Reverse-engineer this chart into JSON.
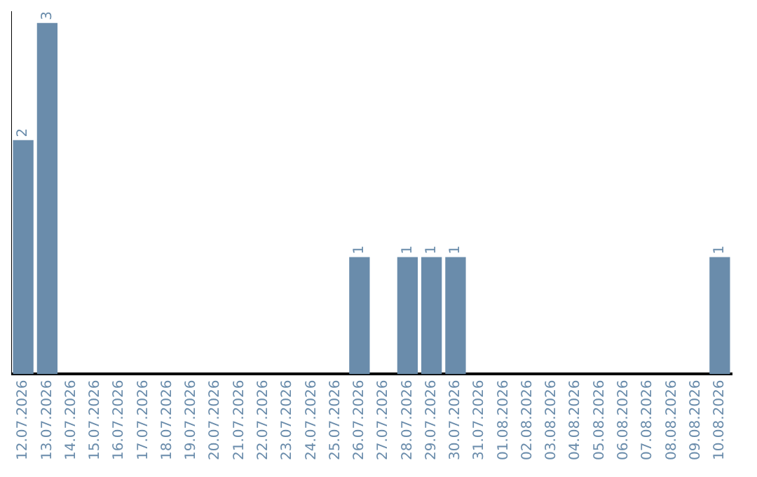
{
  "chart_data": {
    "type": "bar",
    "categories": [
      "12.07.2026",
      "13.07.2026",
      "14.07.2026",
      "15.07.2026",
      "16.07.2026",
      "17.07.2026",
      "18.07.2026",
      "19.07.2026",
      "20.07.2026",
      "21.07.2026",
      "22.07.2026",
      "23.07.2026",
      "24.07.2026",
      "25.07.2026",
      "26.07.2026",
      "27.07.2026",
      "28.07.2026",
      "29.07.2026",
      "30.07.2026",
      "31.07.2026",
      "01.08.2026",
      "02.08.2026",
      "03.08.2026",
      "04.08.2026",
      "05.08.2026",
      "06.08.2026",
      "07.08.2026",
      "08.08.2026",
      "09.08.2026",
      "10.08.2026"
    ],
    "values": [
      2,
      3,
      0,
      0,
      0,
      0,
      0,
      0,
      0,
      0,
      0,
      0,
      0,
      0,
      1,
      0,
      1,
      1,
      1,
      0,
      0,
      0,
      0,
      0,
      0,
      0,
      0,
      0,
      0,
      1
    ],
    "value_labels": [
      "2",
      "3",
      null,
      null,
      null,
      null,
      null,
      null,
      null,
      null,
      null,
      null,
      null,
      null,
      "1",
      null,
      "1",
      "1",
      "1",
      null,
      null,
      null,
      null,
      null,
      null,
      null,
      null,
      null,
      null,
      "1"
    ],
    "color": "#6a8cab",
    "ylim": [
      0,
      3.1
    ],
    "grid": false,
    "legend": false,
    "tick_labels": "x"
  }
}
